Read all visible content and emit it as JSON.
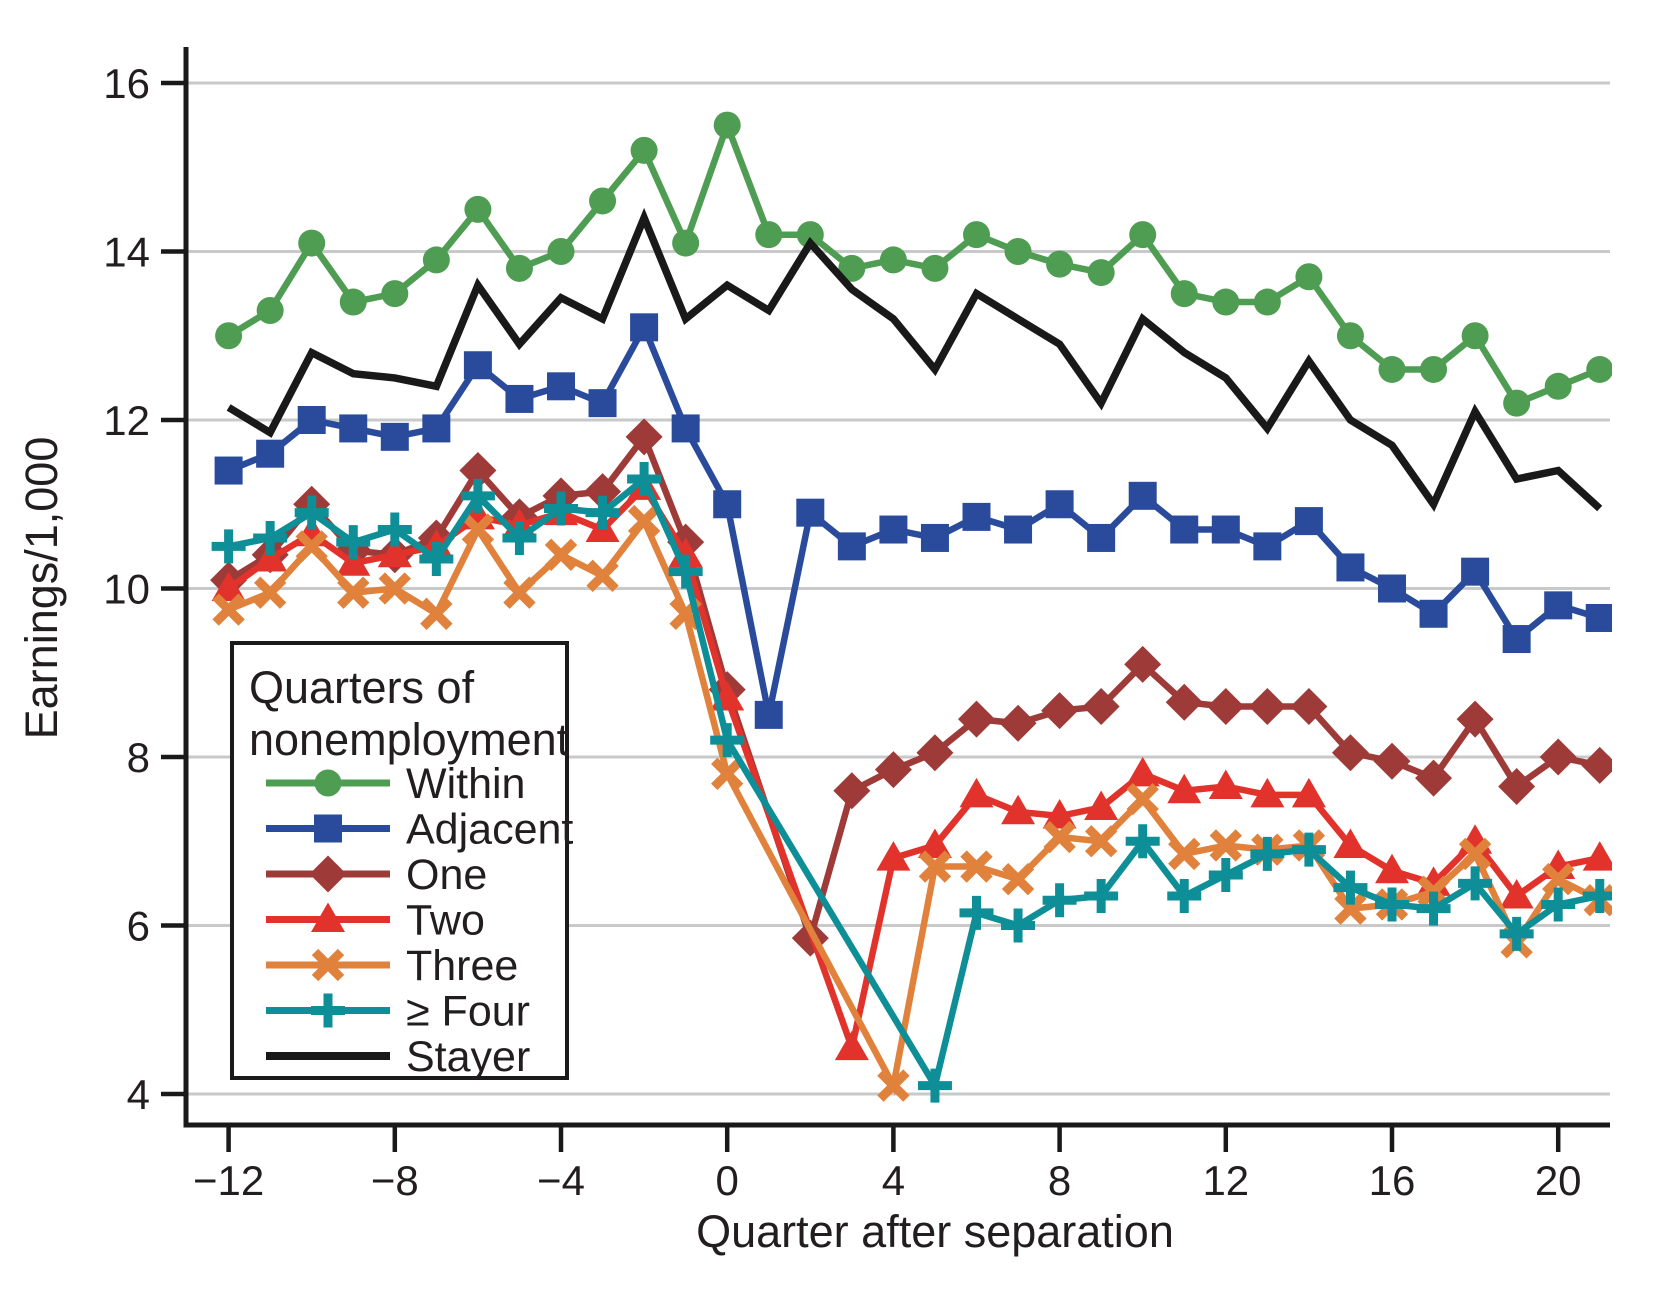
{
  "figure": {
    "background": "#ffffff",
    "text_color": "#221e1f",
    "grid_color": "#c9c9c9",
    "axis_color": "#191919"
  },
  "chart_data": {
    "type": "line",
    "title": "",
    "xlabel": "Quarter after separation",
    "ylabel": "Earnings/1,000",
    "x": [
      -12,
      -11,
      -10,
      -9,
      -8,
      -7,
      -6,
      -5,
      -4,
      -3,
      -2,
      -1,
      0,
      1,
      2,
      3,
      4,
      5,
      6,
      7,
      8,
      9,
      10,
      11,
      12,
      13,
      14,
      15,
      16,
      17,
      18,
      19,
      20,
      21
    ],
    "x_ticks": [
      -12,
      -8,
      -4,
      0,
      4,
      8,
      12,
      16,
      20
    ],
    "y_ticks": [
      4,
      6,
      8,
      10,
      12,
      14,
      16
    ],
    "xlim": [
      -13,
      21.4
    ],
    "ylim": [
      3.6,
      16.35
    ],
    "grid": true,
    "legend_position": "inside lower-left",
    "legend_title": "Quarters of nonemployment",
    "series": [
      {
        "key": "within",
        "name": "Within",
        "marker": "circle",
        "color": "#4e9d52",
        "values": [
          13.0,
          13.3,
          14.1,
          13.4,
          13.5,
          13.9,
          14.5,
          13.8,
          14.0,
          14.6,
          15.2,
          14.1,
          15.5,
          14.2,
          14.2,
          13.8,
          13.9,
          13.8,
          14.2,
          14.0,
          13.85,
          13.75,
          14.2,
          13.5,
          13.4,
          13.4,
          13.7,
          13.0,
          12.6,
          12.6,
          13.0,
          12.2,
          12.4,
          12.6
        ]
      },
      {
        "key": "adjacent",
        "name": "Adjacent",
        "marker": "square",
        "color": "#2a4b9c",
        "values": [
          11.4,
          11.6,
          12.0,
          11.9,
          11.8,
          11.9,
          12.65,
          12.25,
          12.4,
          12.2,
          13.1,
          11.9,
          11.0,
          8.5,
          10.9,
          10.5,
          10.7,
          10.6,
          10.85,
          10.7,
          11.0,
          10.6,
          11.1,
          10.7,
          10.7,
          10.5,
          10.8,
          10.25,
          10.0,
          9.7,
          10.2,
          9.4,
          9.8,
          9.65
        ]
      },
      {
        "key": "one",
        "name": "One",
        "marker": "diamond",
        "color": "#9e3b39",
        "values": [
          10.1,
          10.4,
          11.0,
          10.45,
          10.4,
          10.6,
          11.4,
          10.85,
          11.1,
          11.15,
          11.8,
          10.55,
          8.8,
          null,
          5.85,
          7.6,
          7.85,
          8.05,
          8.45,
          8.4,
          8.55,
          8.6,
          9.1,
          8.65,
          8.6,
          8.6,
          8.6,
          8.05,
          7.95,
          7.75,
          8.45,
          7.65,
          8.0,
          7.9
        ]
      },
      {
        "key": "two",
        "name": "Two",
        "marker": "triangle",
        "color": "#e1332b",
        "values": [
          10.0,
          10.35,
          10.65,
          10.3,
          10.4,
          10.5,
          10.85,
          10.75,
          10.9,
          10.7,
          11.2,
          10.4,
          8.7,
          null,
          null,
          4.55,
          6.8,
          6.95,
          7.55,
          7.35,
          7.3,
          7.4,
          7.8,
          7.6,
          7.65,
          7.55,
          7.55,
          6.95,
          6.65,
          6.5,
          7.0,
          6.35,
          6.7,
          6.8
        ]
      },
      {
        "key": "three",
        "name": "Three",
        "marker": "x",
        "color": "#e0813c",
        "values": [
          9.75,
          9.95,
          10.5,
          9.95,
          10.0,
          9.7,
          10.7,
          9.95,
          10.4,
          10.15,
          10.8,
          9.7,
          7.8,
          null,
          null,
          null,
          4.1,
          6.7,
          6.7,
          6.55,
          7.05,
          7.0,
          7.5,
          6.85,
          6.95,
          6.9,
          6.95,
          6.2,
          6.25,
          6.4,
          6.85,
          5.8,
          6.55,
          6.3
        ]
      },
      {
        "key": "ge-four",
        "name": "≥ Four",
        "marker": "plus",
        "color": "#0e8e96",
        "values": [
          10.5,
          10.6,
          10.9,
          10.55,
          10.7,
          10.35,
          11.1,
          10.6,
          10.95,
          10.9,
          11.3,
          10.2,
          8.2,
          null,
          null,
          null,
          null,
          4.1,
          6.15,
          6.0,
          6.3,
          6.35,
          7.0,
          6.35,
          6.6,
          6.85,
          6.9,
          6.45,
          6.25,
          6.2,
          6.5,
          5.9,
          6.25,
          6.35
        ]
      },
      {
        "key": "stayer",
        "name": "Stayer",
        "marker": "none",
        "color": "#191919",
        "values": [
          12.15,
          11.85,
          12.8,
          12.55,
          12.5,
          12.4,
          13.6,
          12.9,
          13.45,
          13.2,
          14.4,
          13.2,
          13.6,
          13.3,
          14.1,
          13.55,
          13.2,
          12.6,
          13.5,
          13.2,
          12.9,
          12.2,
          13.2,
          12.8,
          12.5,
          11.9,
          12.7,
          12.0,
          11.7,
          11.0,
          12.1,
          11.3,
          11.4,
          10.95
        ]
      }
    ]
  },
  "legend": {
    "title_lines": [
      "Quarters of",
      "nonemployment"
    ]
  }
}
